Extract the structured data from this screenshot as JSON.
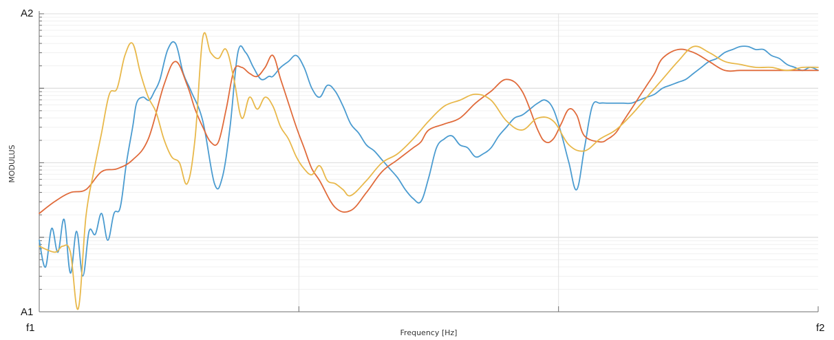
{
  "chart_data": {
    "type": "line",
    "xlabel": "Frequency [Hz]",
    "ylabel": "MODULUS",
    "y_scale": "log",
    "grid": true,
    "legend": "none",
    "x_tick_labels": {
      "start": "f1",
      "end": "f2"
    },
    "y_tick_labels": {
      "bottom": "A1",
      "top": "A2"
    },
    "xlim": [
      0,
      1
    ],
    "ylim": [
      0,
      1
    ],
    "series": [
      {
        "color": "#4a9bd0",
        "x": [
          0.0,
          0.008,
          0.016,
          0.024,
          0.032,
          0.04,
          0.048,
          0.056,
          0.064,
          0.072,
          0.08,
          0.088,
          0.096,
          0.104,
          0.112,
          0.12,
          0.125,
          0.133,
          0.141,
          0.148,
          0.155,
          0.165,
          0.175,
          0.185,
          0.195,
          0.21,
          0.225,
          0.235,
          0.245,
          0.255,
          0.265,
          0.275,
          0.285,
          0.295,
          0.3,
          0.31,
          0.32,
          0.33,
          0.34,
          0.35,
          0.36,
          0.37,
          0.38,
          0.39,
          0.4,
          0.41,
          0.42,
          0.43,
          0.44,
          0.45,
          0.46,
          0.47,
          0.48,
          0.49,
          0.5,
          0.51,
          0.52,
          0.53,
          0.54,
          0.55,
          0.56,
          0.57,
          0.58,
          0.59,
          0.6,
          0.61,
          0.62,
          0.63,
          0.64,
          0.65,
          0.66,
          0.67,
          0.68,
          0.69,
          0.7,
          0.71,
          0.72,
          0.73,
          0.74,
          0.75,
          0.76,
          0.77,
          0.78,
          0.79,
          0.8,
          0.81,
          0.82,
          0.83,
          0.84,
          0.85,
          0.86,
          0.87,
          0.88,
          0.89,
          0.9,
          0.91,
          0.92,
          0.93,
          0.94,
          0.95,
          0.96,
          0.97,
          0.98,
          0.99,
          1.0
        ],
        "y": [
          0.24,
          0.15,
          0.28,
          0.2,
          0.31,
          0.13,
          0.27,
          0.12,
          0.27,
          0.26,
          0.33,
          0.24,
          0.33,
          0.35,
          0.5,
          0.62,
          0.7,
          0.72,
          0.71,
          0.74,
          0.78,
          0.88,
          0.9,
          0.8,
          0.74,
          0.64,
          0.43,
          0.45,
          0.62,
          0.87,
          0.87,
          0.82,
          0.78,
          0.79,
          0.79,
          0.82,
          0.84,
          0.86,
          0.82,
          0.75,
          0.72,
          0.76,
          0.74,
          0.69,
          0.63,
          0.6,
          0.56,
          0.54,
          0.51,
          0.48,
          0.45,
          0.41,
          0.38,
          0.37,
          0.45,
          0.55,
          0.58,
          0.59,
          0.56,
          0.55,
          0.52,
          0.53,
          0.55,
          0.59,
          0.62,
          0.65,
          0.66,
          0.68,
          0.7,
          0.71,
          0.68,
          0.6,
          0.5,
          0.41,
          0.55,
          0.69,
          0.7,
          0.7,
          0.7,
          0.7,
          0.7,
          0.71,
          0.72,
          0.73,
          0.75,
          0.76,
          0.77,
          0.78,
          0.8,
          0.82,
          0.84,
          0.85,
          0.87,
          0.88,
          0.89,
          0.89,
          0.88,
          0.88,
          0.86,
          0.85,
          0.83,
          0.82,
          0.81,
          0.82,
          0.81
        ]
      },
      {
        "color": "#e06a3a",
        "x": [
          0.0,
          0.02,
          0.04,
          0.06,
          0.08,
          0.1,
          0.12,
          0.14,
          0.16,
          0.175,
          0.19,
          0.2,
          0.21,
          0.22,
          0.23,
          0.24,
          0.25,
          0.26,
          0.27,
          0.28,
          0.29,
          0.3,
          0.31,
          0.32,
          0.33,
          0.34,
          0.35,
          0.36,
          0.38,
          0.4,
          0.42,
          0.44,
          0.46,
          0.48,
          0.49,
          0.5,
          0.52,
          0.54,
          0.56,
          0.58,
          0.6,
          0.62,
          0.64,
          0.65,
          0.66,
          0.67,
          0.68,
          0.69,
          0.7,
          0.72,
          0.73,
          0.74,
          0.75,
          0.76,
          0.77,
          0.78,
          0.79,
          0.8,
          0.82,
          0.84,
          0.86,
          0.88,
          0.9,
          0.92,
          0.94,
          0.96,
          0.98,
          1.0
        ],
        "y": [
          0.33,
          0.37,
          0.4,
          0.41,
          0.47,
          0.48,
          0.51,
          0.58,
          0.76,
          0.84,
          0.76,
          0.68,
          0.62,
          0.57,
          0.57,
          0.68,
          0.81,
          0.82,
          0.8,
          0.79,
          0.82,
          0.86,
          0.78,
          0.7,
          0.62,
          0.55,
          0.48,
          0.44,
          0.35,
          0.34,
          0.4,
          0.47,
          0.51,
          0.55,
          0.57,
          0.61,
          0.63,
          0.65,
          0.7,
          0.74,
          0.78,
          0.74,
          0.61,
          0.57,
          0.58,
          0.63,
          0.68,
          0.66,
          0.59,
          0.57,
          0.58,
          0.6,
          0.64,
          0.68,
          0.72,
          0.76,
          0.8,
          0.85,
          0.88,
          0.87,
          0.84,
          0.81,
          0.81,
          0.81,
          0.81,
          0.81,
          0.81,
          0.81
        ]
      },
      {
        "color": "#e8b84a",
        "x": [
          0.0,
          0.02,
          0.03,
          0.04,
          0.05,
          0.06,
          0.07,
          0.08,
          0.09,
          0.1,
          0.11,
          0.12,
          0.13,
          0.14,
          0.15,
          0.16,
          0.17,
          0.18,
          0.19,
          0.2,
          0.21,
          0.22,
          0.23,
          0.24,
          0.25,
          0.26,
          0.27,
          0.28,
          0.29,
          0.3,
          0.31,
          0.32,
          0.33,
          0.34,
          0.35,
          0.36,
          0.37,
          0.38,
          0.39,
          0.4,
          0.42,
          0.44,
          0.46,
          0.48,
          0.5,
          0.52,
          0.54,
          0.56,
          0.58,
          0.6,
          0.62,
          0.64,
          0.66,
          0.68,
          0.7,
          0.72,
          0.74,
          0.76,
          0.78,
          0.8,
          0.82,
          0.84,
          0.86,
          0.88,
          0.9,
          0.92,
          0.94,
          0.96,
          0.98,
          1.0
        ],
        "y": [
          0.22,
          0.2,
          0.22,
          0.2,
          0.01,
          0.32,
          0.47,
          0.6,
          0.73,
          0.75,
          0.86,
          0.9,
          0.8,
          0.72,
          0.67,
          0.58,
          0.52,
          0.5,
          0.43,
          0.58,
          0.92,
          0.87,
          0.85,
          0.88,
          0.78,
          0.65,
          0.72,
          0.68,
          0.72,
          0.69,
          0.62,
          0.58,
          0.52,
          0.48,
          0.46,
          0.49,
          0.44,
          0.43,
          0.41,
          0.39,
          0.44,
          0.5,
          0.53,
          0.58,
          0.64,
          0.69,
          0.71,
          0.73,
          0.71,
          0.64,
          0.61,
          0.65,
          0.64,
          0.56,
          0.54,
          0.58,
          0.61,
          0.66,
          0.72,
          0.78,
          0.84,
          0.89,
          0.87,
          0.84,
          0.83,
          0.82,
          0.82,
          0.81,
          0.82,
          0.82
        ]
      }
    ]
  }
}
